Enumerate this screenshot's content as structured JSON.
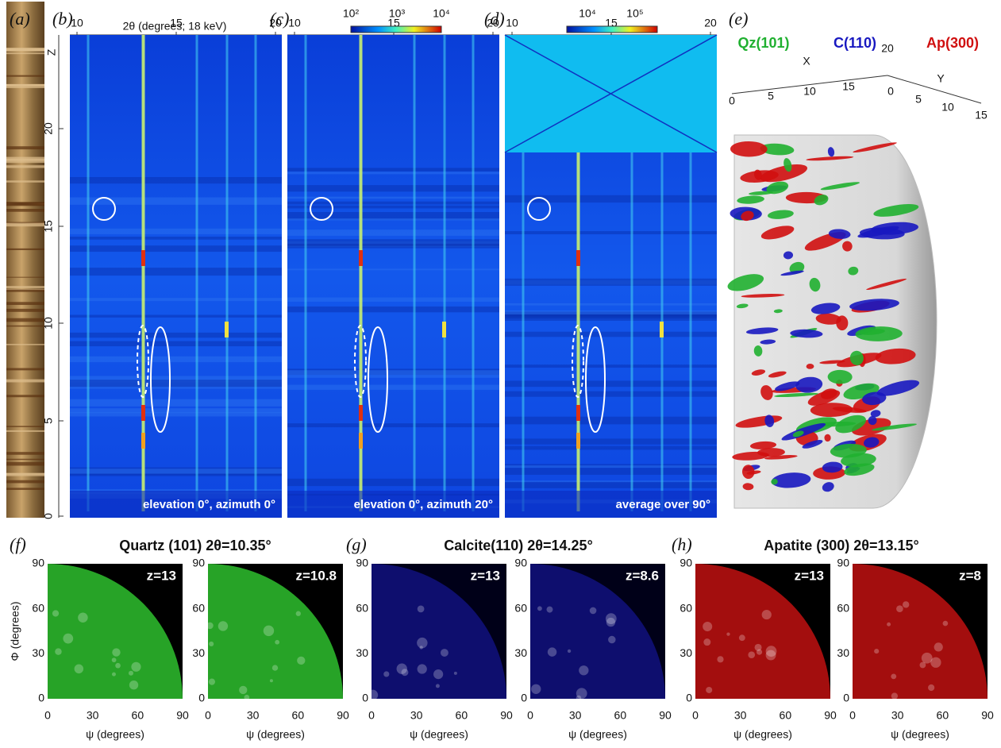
{
  "panel_labels": [
    "(a)",
    "(b)",
    "(c)",
    "(d)",
    "(e)",
    "(f)",
    "(g)",
    "(h)"
  ],
  "scan": {
    "x_title": "2θ (degrees; 18 keV)",
    "z_label": "Z",
    "x_ticks": [
      "10",
      "15",
      "20"
    ],
    "z_ticks": [
      "0",
      "5",
      "10",
      "15",
      "20"
    ],
    "captions": [
      "elevation 0°, azimuth 0°",
      "elevation 0°, azimuth 20°",
      "average over 90°"
    ],
    "colorbars": [
      [
        "10²",
        "10³",
        "10⁴"
      ],
      [
        "10⁴",
        "10⁵"
      ]
    ]
  },
  "volume": {
    "legend": [
      "Qz(101)",
      "C(110)",
      "Ap(300)"
    ],
    "x_label": "X",
    "y_label": "Y",
    "x_ticks": [
      "0",
      "5",
      "10",
      "15",
      "20"
    ],
    "y_ticks": [
      "0",
      "5",
      "10",
      "15"
    ]
  },
  "pole_figures": [
    {
      "title": "Quartz (101) 2θ=10.35°",
      "maps": [
        "z=13",
        "z=10.8"
      ]
    },
    {
      "title": "Calcite(110) 2θ=14.25°",
      "maps": [
        "z=13",
        "z=8.6"
      ]
    },
    {
      "title": "Apatite (300) 2θ=13.15°",
      "maps": [
        "z=13",
        "z=8"
      ]
    }
  ],
  "phi_label": "Φ (degrees)",
  "psi_label": "ψ (degrees)",
  "angle_ticks": [
    "0",
    "30",
    "60",
    "90"
  ]
}
